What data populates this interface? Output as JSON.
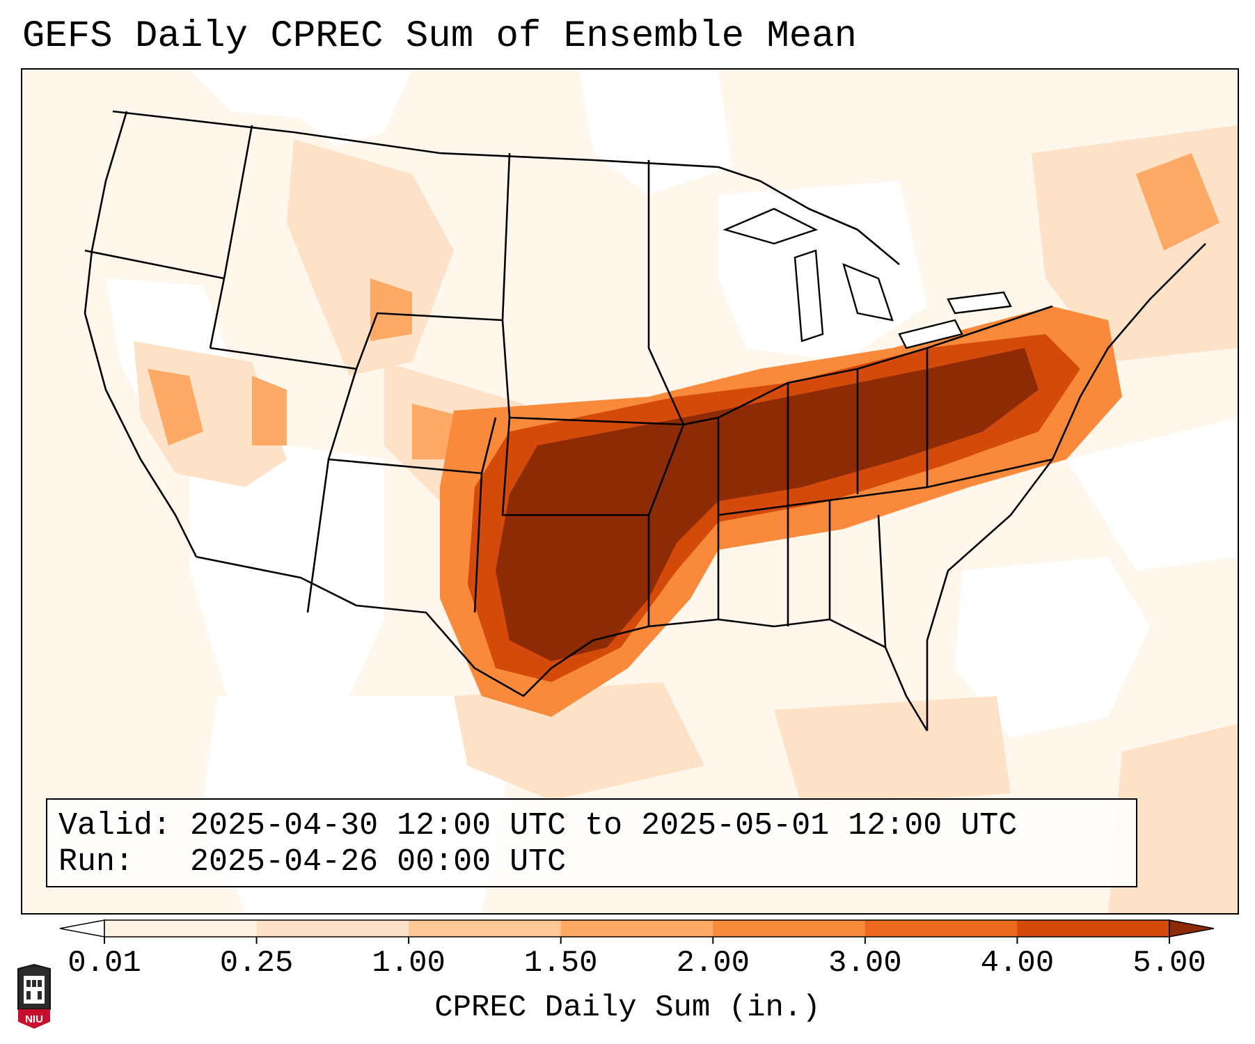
{
  "title": "GEFS Daily CPREC Sum of Ensemble Mean",
  "valid_box": {
    "valid_label": "Valid:",
    "valid_value": "2025-04-30 12:00 UTC to 2025-05-01 12:00 UTC",
    "run_label": "Run:",
    "run_value": "2025-04-26 00:00 UTC"
  },
  "colorbar": {
    "label": "CPREC Daily Sum (in.)",
    "ticks": [
      "0.01",
      "0.25",
      "1.00",
      "1.50",
      "2.00",
      "3.00",
      "4.00",
      "5.00"
    ],
    "colors": [
      "#fff3e6",
      "#fee2c7",
      "#fdc895",
      "#fdaa66",
      "#f98a3b",
      "#ec6a1e",
      "#d44a0a",
      "#8d2b07"
    ],
    "under_color": "#ffffff",
    "over_color": "#8d2b07",
    "extend": "both"
  },
  "map": {
    "projection": "Lambert Conformal",
    "region": "Continental United States",
    "heavy_color": "#8d2b07",
    "state_line_color": "#000000"
  },
  "logo": {
    "text": "NIU",
    "color": "#c8102e"
  }
}
